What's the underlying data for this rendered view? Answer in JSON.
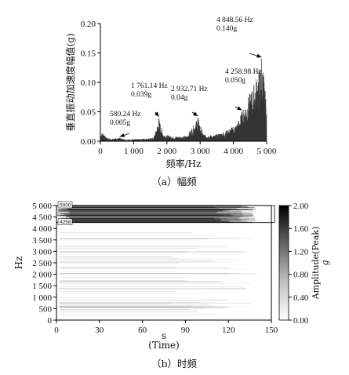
{
  "chart_data": [
    {
      "type": "bar",
      "panel": "(a)",
      "caption": "（a）幅频",
      "xlabel": "频率/Hz",
      "ylabel": "垂直振动加速度幅值(g)",
      "xlim": [
        0,
        5000
      ],
      "ylim": [
        0,
        0.2
      ],
      "x_ticks": [
        "0",
        "1 000",
        "2 000",
        "3 000",
        "4 000",
        "5 000"
      ],
      "y_ticks": [
        "0.00",
        "0.05",
        "0.10",
        "0.15",
        "0.20"
      ],
      "peaks": [
        {
          "freq": 580.24,
          "amp": 0.005,
          "label_f": "580.24 Hz",
          "label_a": "0.005g"
        },
        {
          "freq": 1761.14,
          "amp": 0.039,
          "label_f": "1 761.14 Hz",
          "label_a": "0.039g"
        },
        {
          "freq": 2932.71,
          "amp": 0.04,
          "label_f": "2 932.71 Hz",
          "label_a": "0.04g"
        },
        {
          "freq": 4258.98,
          "amp": 0.05,
          "label_f": "4 258.98 Hz",
          "label_a": "0.050g"
        },
        {
          "freq": 4848.56,
          "amp": 0.14,
          "label_f": "4 848.56 Hz",
          "label_a": "0.140g"
        }
      ],
      "envelope": [
        [
          0,
          0.012
        ],
        [
          80,
          0.016
        ],
        [
          150,
          0.008
        ],
        [
          300,
          0.004
        ],
        [
          580,
          0.006
        ],
        [
          800,
          0.003
        ],
        [
          1200,
          0.004
        ],
        [
          1600,
          0.006
        ],
        [
          1761,
          0.039
        ],
        [
          1900,
          0.012
        ],
        [
          2200,
          0.008
        ],
        [
          2600,
          0.009
        ],
        [
          2933,
          0.04
        ],
        [
          3100,
          0.012
        ],
        [
          3400,
          0.01
        ],
        [
          3700,
          0.016
        ],
        [
          3900,
          0.022
        ],
        [
          4100,
          0.03
        ],
        [
          4259,
          0.05
        ],
        [
          4400,
          0.07
        ],
        [
          4600,
          0.095
        ],
        [
          4750,
          0.12
        ],
        [
          4849,
          0.14
        ],
        [
          4900,
          0.125
        ],
        [
          4950,
          0.09
        ],
        [
          5000,
          0.06
        ]
      ]
    },
    {
      "type": "heatmap",
      "panel": "(b)",
      "caption": "（b）时频",
      "xlabel": "s",
      "xlabel2": "(Time)",
      "ylabel": "Hz",
      "xlim": [
        0,
        150
      ],
      "ylim": [
        0,
        5000
      ],
      "x_ticks": [
        "0",
        "30",
        "60",
        "90",
        "120",
        "150"
      ],
      "y_ticks": [
        "0",
        "500",
        "1 000",
        "1 500",
        "2 000",
        "2 500",
        "3 000",
        "3 500",
        "4 000",
        "4 500",
        "5 000"
      ],
      "band_labels": [
        "5000",
        "4258"
      ],
      "colorbar_label": "Amplitude(Peak)",
      "colorbar_unit": "g",
      "colorbar_ticks": [
        "2.00",
        "1.60",
        "1.20",
        "0.80",
        "0.40",
        "0.00"
      ],
      "colorbar_range": [
        0,
        2
      ],
      "band_lines_hz": [
        5000,
        4258
      ]
    }
  ]
}
